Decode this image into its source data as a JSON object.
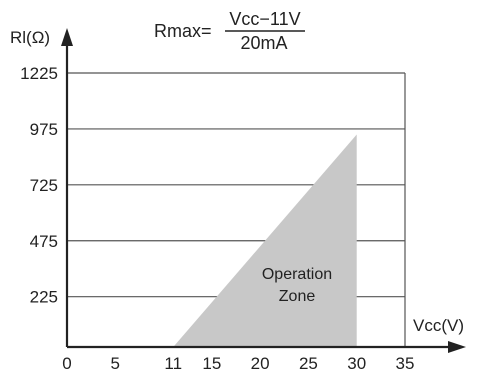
{
  "chart_data": {
    "type": "area",
    "title": "",
    "formula": {
      "lhs": "Rmax=",
      "numerator": "Vcc−11V",
      "denominator": "20mA"
    },
    "xlabel": "Vcc(V)",
    "ylabel": "Rl(Ω)",
    "xlim": [
      0,
      35
    ],
    "ylim": [
      0,
      1225
    ],
    "x_ticks": [
      0,
      5,
      11,
      15,
      20,
      25,
      30,
      35
    ],
    "x_tick_labels": [
      "0",
      "5",
      "11",
      "15",
      "20",
      "25",
      "30",
      "35"
    ],
    "y_ticks": [
      225,
      475,
      725,
      975,
      1225
    ],
    "y_tick_labels": [
      "225",
      "475",
      "725",
      "975",
      "1225"
    ],
    "grid": "horizontal",
    "series": [
      {
        "label": "Operation Zone",
        "points": [
          [
            11,
            0
          ],
          [
            30,
            950
          ],
          [
            30,
            0
          ]
        ],
        "color": "#c8c8c8"
      }
    ],
    "colors": {
      "axis": "#222222",
      "grid": "#555555",
      "fill": "#c8c8c8"
    }
  }
}
